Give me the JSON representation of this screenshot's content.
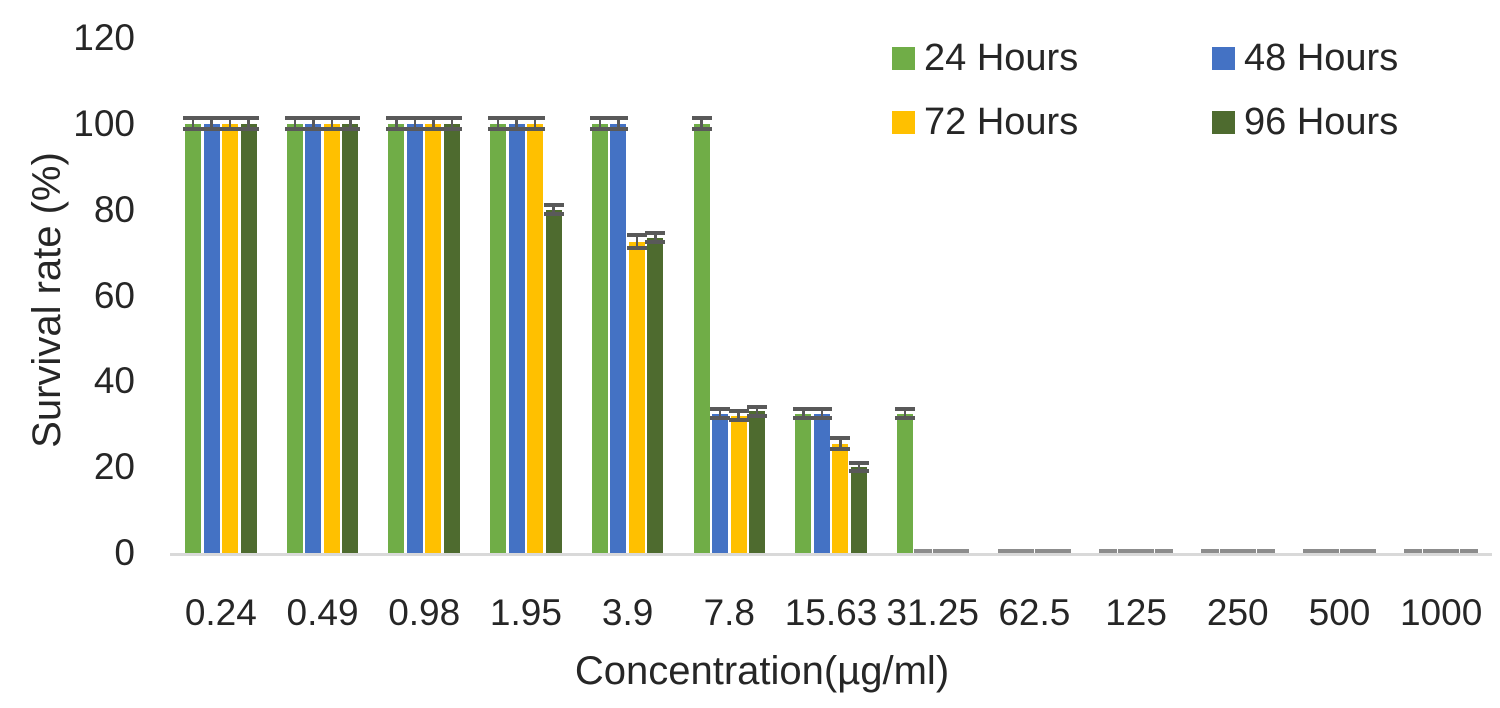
{
  "chart_data": {
    "type": "bar",
    "title": "",
    "xlabel": "Concentration(µg/ml)",
    "ylabel": "Survival rate (%)",
    "ylim": [
      0,
      120
    ],
    "yticks": [
      0,
      20,
      40,
      60,
      80,
      100,
      120
    ],
    "grid": false,
    "legend_position": "top-right",
    "categories": [
      "0.24",
      "0.49",
      "0.98",
      "1.95",
      "3.9",
      "7.8",
      "15.63",
      "31.25",
      "62.5",
      "125",
      "250",
      "500",
      "1000"
    ],
    "series": [
      {
        "name": "24 Hours",
        "color": "#70AD47",
        "values": [
          100,
          100,
          100,
          100,
          100,
          100,
          32.5,
          32.5,
          0,
          0,
          0,
          0,
          0
        ],
        "errors": [
          1.3,
          1.3,
          1.3,
          1.3,
          1.3,
          1.3,
          1.0,
          1.0,
          0.4,
          0.4,
          0.4,
          0.4,
          0.4
        ]
      },
      {
        "name": "48 Hours",
        "color": "#4472C4",
        "values": [
          100,
          100,
          100,
          100,
          100,
          32.5,
          32.5,
          0,
          0,
          0,
          0,
          0,
          0
        ],
        "errors": [
          1.3,
          1.3,
          1.3,
          1.3,
          1.3,
          1.0,
          1.0,
          0.4,
          0.4,
          0.4,
          0.4,
          0.4,
          0.4
        ]
      },
      {
        "name": "72 Hours",
        "color": "#FFC000",
        "values": [
          100,
          100,
          100,
          100,
          72.5,
          32,
          25.5,
          0,
          0,
          0,
          0,
          0,
          0
        ],
        "errors": [
          1.3,
          1.3,
          1.3,
          1.3,
          1.5,
          1.0,
          1.2,
          0.4,
          0.4,
          0.4,
          0.4,
          0.4,
          0.4
        ]
      },
      {
        "name": "96 Hours",
        "color": "#4E6B2F",
        "values": [
          100,
          100,
          100,
          80,
          73.5,
          33,
          20,
          0,
          0,
          0,
          0,
          0,
          0
        ],
        "errors": [
          1.3,
          1.3,
          1.3,
          1.0,
          1.0,
          1.0,
          1.0,
          0.4,
          0.4,
          0.4,
          0.4,
          0.4,
          0.4
        ]
      }
    ],
    "error_bar_color": "#595959",
    "zero_cap_color": "#8C8C8C",
    "axis_line_color": "#D9D9D9",
    "text_color": "#262626"
  }
}
